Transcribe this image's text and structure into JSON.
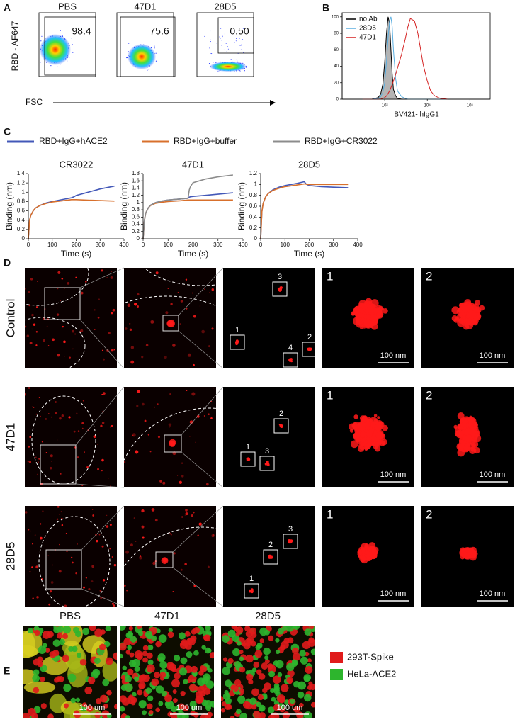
{
  "panel_labels": {
    "a": "A",
    "b": "B",
    "c": "C",
    "d": "D",
    "e": "E"
  },
  "flow": {
    "y_label": "RBD - AF647",
    "x_label": "FSC",
    "plots": [
      {
        "title": "PBS",
        "gate": "98.4"
      },
      {
        "title": "47D1",
        "gate": "75.6"
      },
      {
        "title": "28D5",
        "gate": "0.50"
      }
    ]
  },
  "chart_data": [
    {
      "type": "line",
      "x_label": "BV421- hIgG1",
      "xlog": true,
      "xlim": [
        100,
        300000
      ],
      "xticks": [
        {
          "value": 1000,
          "label": "10³"
        },
        {
          "value": 10000,
          "label": "10⁴"
        },
        {
          "value": 100000,
          "label": "10⁵"
        }
      ],
      "ylim": [
        0,
        105
      ],
      "yticks": [
        0,
        20,
        40,
        60,
        80,
        100
      ],
      "legend": "upper left",
      "x": [
        300,
        500,
        700,
        800,
        900,
        1000,
        1100,
        1200,
        1300,
        1400,
        1500,
        1600,
        1800,
        2000,
        2500,
        3000,
        3500,
        4000,
        5000,
        6000,
        7000,
        8000,
        10000,
        12000,
        15000,
        20000,
        30000
      ],
      "series": [
        {
          "name": "no Ab",
          "color": "#000000",
          "fill": "#b4b4b4",
          "values": [
            0,
            0,
            2,
            6,
            18,
            45,
            80,
            100,
            92,
            60,
            30,
            12,
            4,
            1,
            0,
            0,
            0,
            0,
            0,
            0,
            0,
            0,
            0,
            0,
            0,
            0,
            0
          ]
        },
        {
          "name": "28D5",
          "color": "#5aaee0",
          "values": [
            0,
            0,
            1,
            3,
            8,
            20,
            45,
            75,
            95,
            100,
            88,
            60,
            25,
            10,
            3,
            1,
            0,
            0,
            0,
            0,
            0,
            0,
            0,
            0,
            0,
            0,
            0
          ]
        },
        {
          "name": "47D1",
          "color": "#d42020",
          "values": [
            0,
            0,
            0,
            0,
            1,
            2,
            4,
            7,
            10,
            14,
            18,
            22,
            30,
            38,
            55,
            72,
            88,
            98,
            95,
            80,
            60,
            42,
            22,
            10,
            4,
            1,
            0
          ]
        }
      ]
    },
    {
      "type": "line",
      "title": "CR3022",
      "x_label": "Time (s)",
      "y_label": "Binding (nm)",
      "xlim": [
        0,
        400
      ],
      "xticks": [
        0,
        100,
        200,
        300,
        400
      ],
      "ylim": [
        0,
        1.4
      ],
      "yticks": [
        0,
        0.2,
        0.4,
        0.6,
        0.8,
        1,
        1.2,
        1.4
      ],
      "x": [
        0,
        5,
        10,
        20,
        30,
        50,
        75,
        100,
        150,
        180,
        185,
        190,
        200,
        250,
        300,
        360
      ],
      "series": [
        {
          "color": "#4358b8",
          "values": [
            0,
            0.4,
            0.5,
            0.6,
            0.66,
            0.72,
            0.77,
            0.8,
            0.85,
            0.88,
            0.89,
            0.9,
            0.93,
            1.0,
            1.07,
            1.13
          ]
        },
        {
          "color": "#d8702c",
          "values": [
            0,
            0.4,
            0.5,
            0.6,
            0.66,
            0.72,
            0.76,
            0.79,
            0.82,
            0.84,
            0.84,
            0.84,
            0.84,
            0.83,
            0.82,
            0.81
          ]
        }
      ]
    },
    {
      "type": "line",
      "title": "47D1",
      "x_label": "Time (s)",
      "y_label": "Binding (nm)",
      "xlim": [
        0,
        400
      ],
      "xticks": [
        0,
        100,
        200,
        300,
        400
      ],
      "ylim": [
        0,
        1.8
      ],
      "yticks": [
        0,
        0.2,
        0.4,
        0.6,
        0.8,
        1,
        1.2,
        1.4,
        1.6,
        1.8
      ],
      "x": [
        0,
        5,
        10,
        20,
        30,
        50,
        75,
        100,
        150,
        180,
        185,
        190,
        200,
        250,
        300,
        360
      ],
      "series": [
        {
          "color": "#4358b8",
          "values": [
            0,
            0.5,
            0.7,
            0.85,
            0.93,
            1.0,
            1.04,
            1.07,
            1.1,
            1.12,
            1.15,
            1.16,
            1.17,
            1.2,
            1.23,
            1.27
          ]
        },
        {
          "color": "#d8702c",
          "values": [
            0,
            0.5,
            0.7,
            0.85,
            0.92,
            0.98,
            1.01,
            1.03,
            1.05,
            1.07,
            1.07,
            1.07,
            1.07,
            1.07,
            1.07,
            1.07
          ]
        },
        {
          "color": "#8c8c8c",
          "values": [
            0,
            0.5,
            0.7,
            0.85,
            0.93,
            1.0,
            1.04,
            1.07,
            1.1,
            1.12,
            1.35,
            1.45,
            1.55,
            1.65,
            1.71,
            1.76
          ]
        }
      ]
    },
    {
      "type": "line",
      "title": "28D5",
      "x_label": "Time (s)",
      "y_label": "Binding (nm)",
      "xlim": [
        0,
        400
      ],
      "xticks": [
        0,
        100,
        200,
        300,
        400
      ],
      "ylim": [
        0,
        1.2
      ],
      "yticks": [
        0,
        0.2,
        0.4,
        0.6,
        0.8,
        1,
        1.2
      ],
      "x": [
        0,
        5,
        10,
        20,
        30,
        50,
        75,
        100,
        150,
        180,
        185,
        190,
        200,
        250,
        300,
        360
      ],
      "series": [
        {
          "color": "#4358b8",
          "values": [
            0,
            0.5,
            0.65,
            0.77,
            0.83,
            0.9,
            0.95,
            0.98,
            1.02,
            1.05,
            1.02,
            1.0,
            0.98,
            0.96,
            0.95,
            0.94
          ]
        },
        {
          "color": "#d8702c",
          "values": [
            0,
            0.5,
            0.65,
            0.77,
            0.83,
            0.89,
            0.93,
            0.96,
            0.99,
            1.01,
            1.01,
            1.0,
            1.0,
            1.0,
            1.0,
            1.0
          ]
        }
      ]
    }
  ],
  "binding_legend": [
    {
      "name": "RBD+IgG+hACE2",
      "color": "#4358b8"
    },
    {
      "name": "RBD+IgG+buffer",
      "color": "#d8702c"
    },
    {
      "name": "RBD+IgG+CR3022",
      "color": "#8c8c8c"
    }
  ],
  "imaging": {
    "rows": [
      {
        "label": "Control",
        "zoom_labels": [
          "1",
          "2",
          "3",
          "4"
        ]
      },
      {
        "label": "47D1",
        "zoom_labels": [
          "1",
          "2",
          "3"
        ]
      },
      {
        "label": "28D5",
        "zoom_labels": [
          "1",
          "2",
          "3"
        ]
      }
    ],
    "detail_labels": [
      "1",
      "2"
    ],
    "scale_bar": "100 nm"
  },
  "fusion": {
    "titles": [
      "PBS",
      "47D1",
      "28D5"
    ],
    "scale_bar": "100 um",
    "legend": [
      {
        "name": "293T-Spike",
        "color": "#e01b1b"
      },
      {
        "name": "HeLa-ACE2",
        "color": "#2db52d"
      }
    ]
  }
}
